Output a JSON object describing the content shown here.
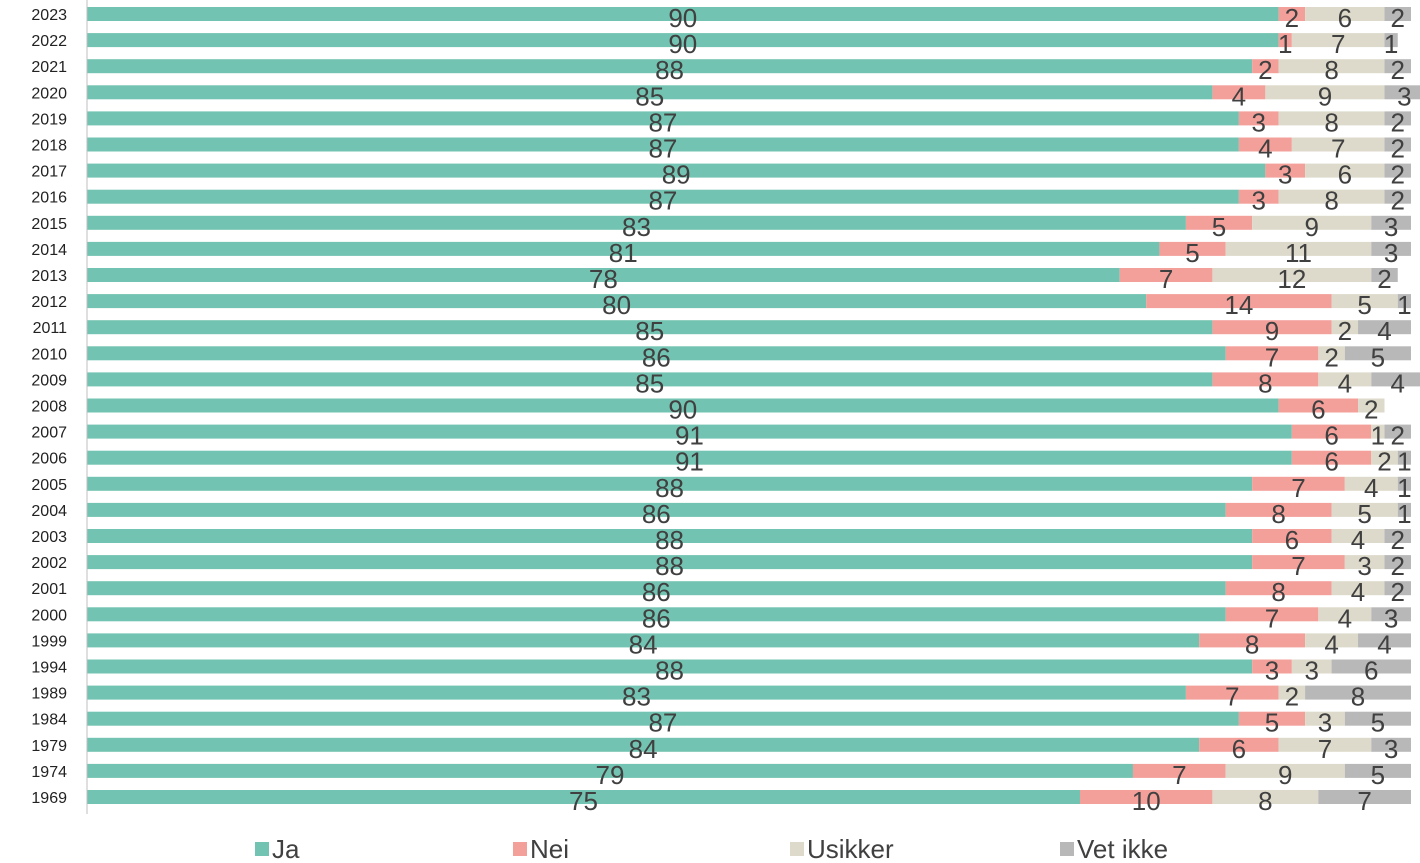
{
  "chart_data": {
    "type": "bar",
    "orientation": "horizontal",
    "stacked": true,
    "title": "",
    "xlabel": "",
    "ylabel": "",
    "xlim": [
      0,
      100
    ],
    "grid": false,
    "legend_position": "bottom",
    "categories": [
      "2023",
      "2022",
      "2021",
      "2020",
      "2019",
      "2018",
      "2017",
      "2016",
      "2015",
      "2014",
      "2013",
      "2012",
      "2011",
      "2010",
      "2009",
      "2008",
      "2007",
      "2006",
      "2005",
      "2004",
      "2003",
      "2002",
      "2001",
      "2000",
      "1999",
      "1994",
      "1989",
      "1984",
      "1979",
      "1974",
      "1969"
    ],
    "series": [
      {
        "name": "Ja",
        "color": "#72C3B1",
        "values": [
          90,
          90,
          88,
          85,
          87,
          87,
          89,
          87,
          83,
          81,
          78,
          80,
          85,
          86,
          85,
          90,
          91,
          91,
          88,
          86,
          88,
          88,
          86,
          86,
          84,
          88,
          83,
          87,
          84,
          79,
          75
        ]
      },
      {
        "name": "Nei",
        "color": "#F4A09A",
        "values": [
          2,
          1,
          2,
          4,
          3,
          4,
          3,
          3,
          5,
          5,
          7,
          14,
          9,
          7,
          8,
          6,
          6,
          6,
          7,
          8,
          6,
          7,
          8,
          7,
          8,
          3,
          7,
          5,
          6,
          7,
          10
        ]
      },
      {
        "name": "Usikker",
        "color": "#DDDACB",
        "values": [
          6,
          7,
          8,
          9,
          8,
          7,
          6,
          8,
          9,
          11,
          12,
          5,
          2,
          2,
          4,
          2,
          1,
          2,
          4,
          5,
          4,
          3,
          4,
          4,
          4,
          3,
          2,
          3,
          7,
          9,
          8
        ]
      },
      {
        "name": "Vet ikke",
        "color": "#B8B8B8",
        "values": [
          2,
          1,
          2,
          3,
          2,
          2,
          2,
          2,
          3,
          3,
          2,
          1,
          4,
          5,
          4,
          null,
          2,
          1,
          1,
          1,
          2,
          2,
          2,
          3,
          4,
          6,
          8,
          5,
          3,
          5,
          7
        ]
      }
    ]
  }
}
